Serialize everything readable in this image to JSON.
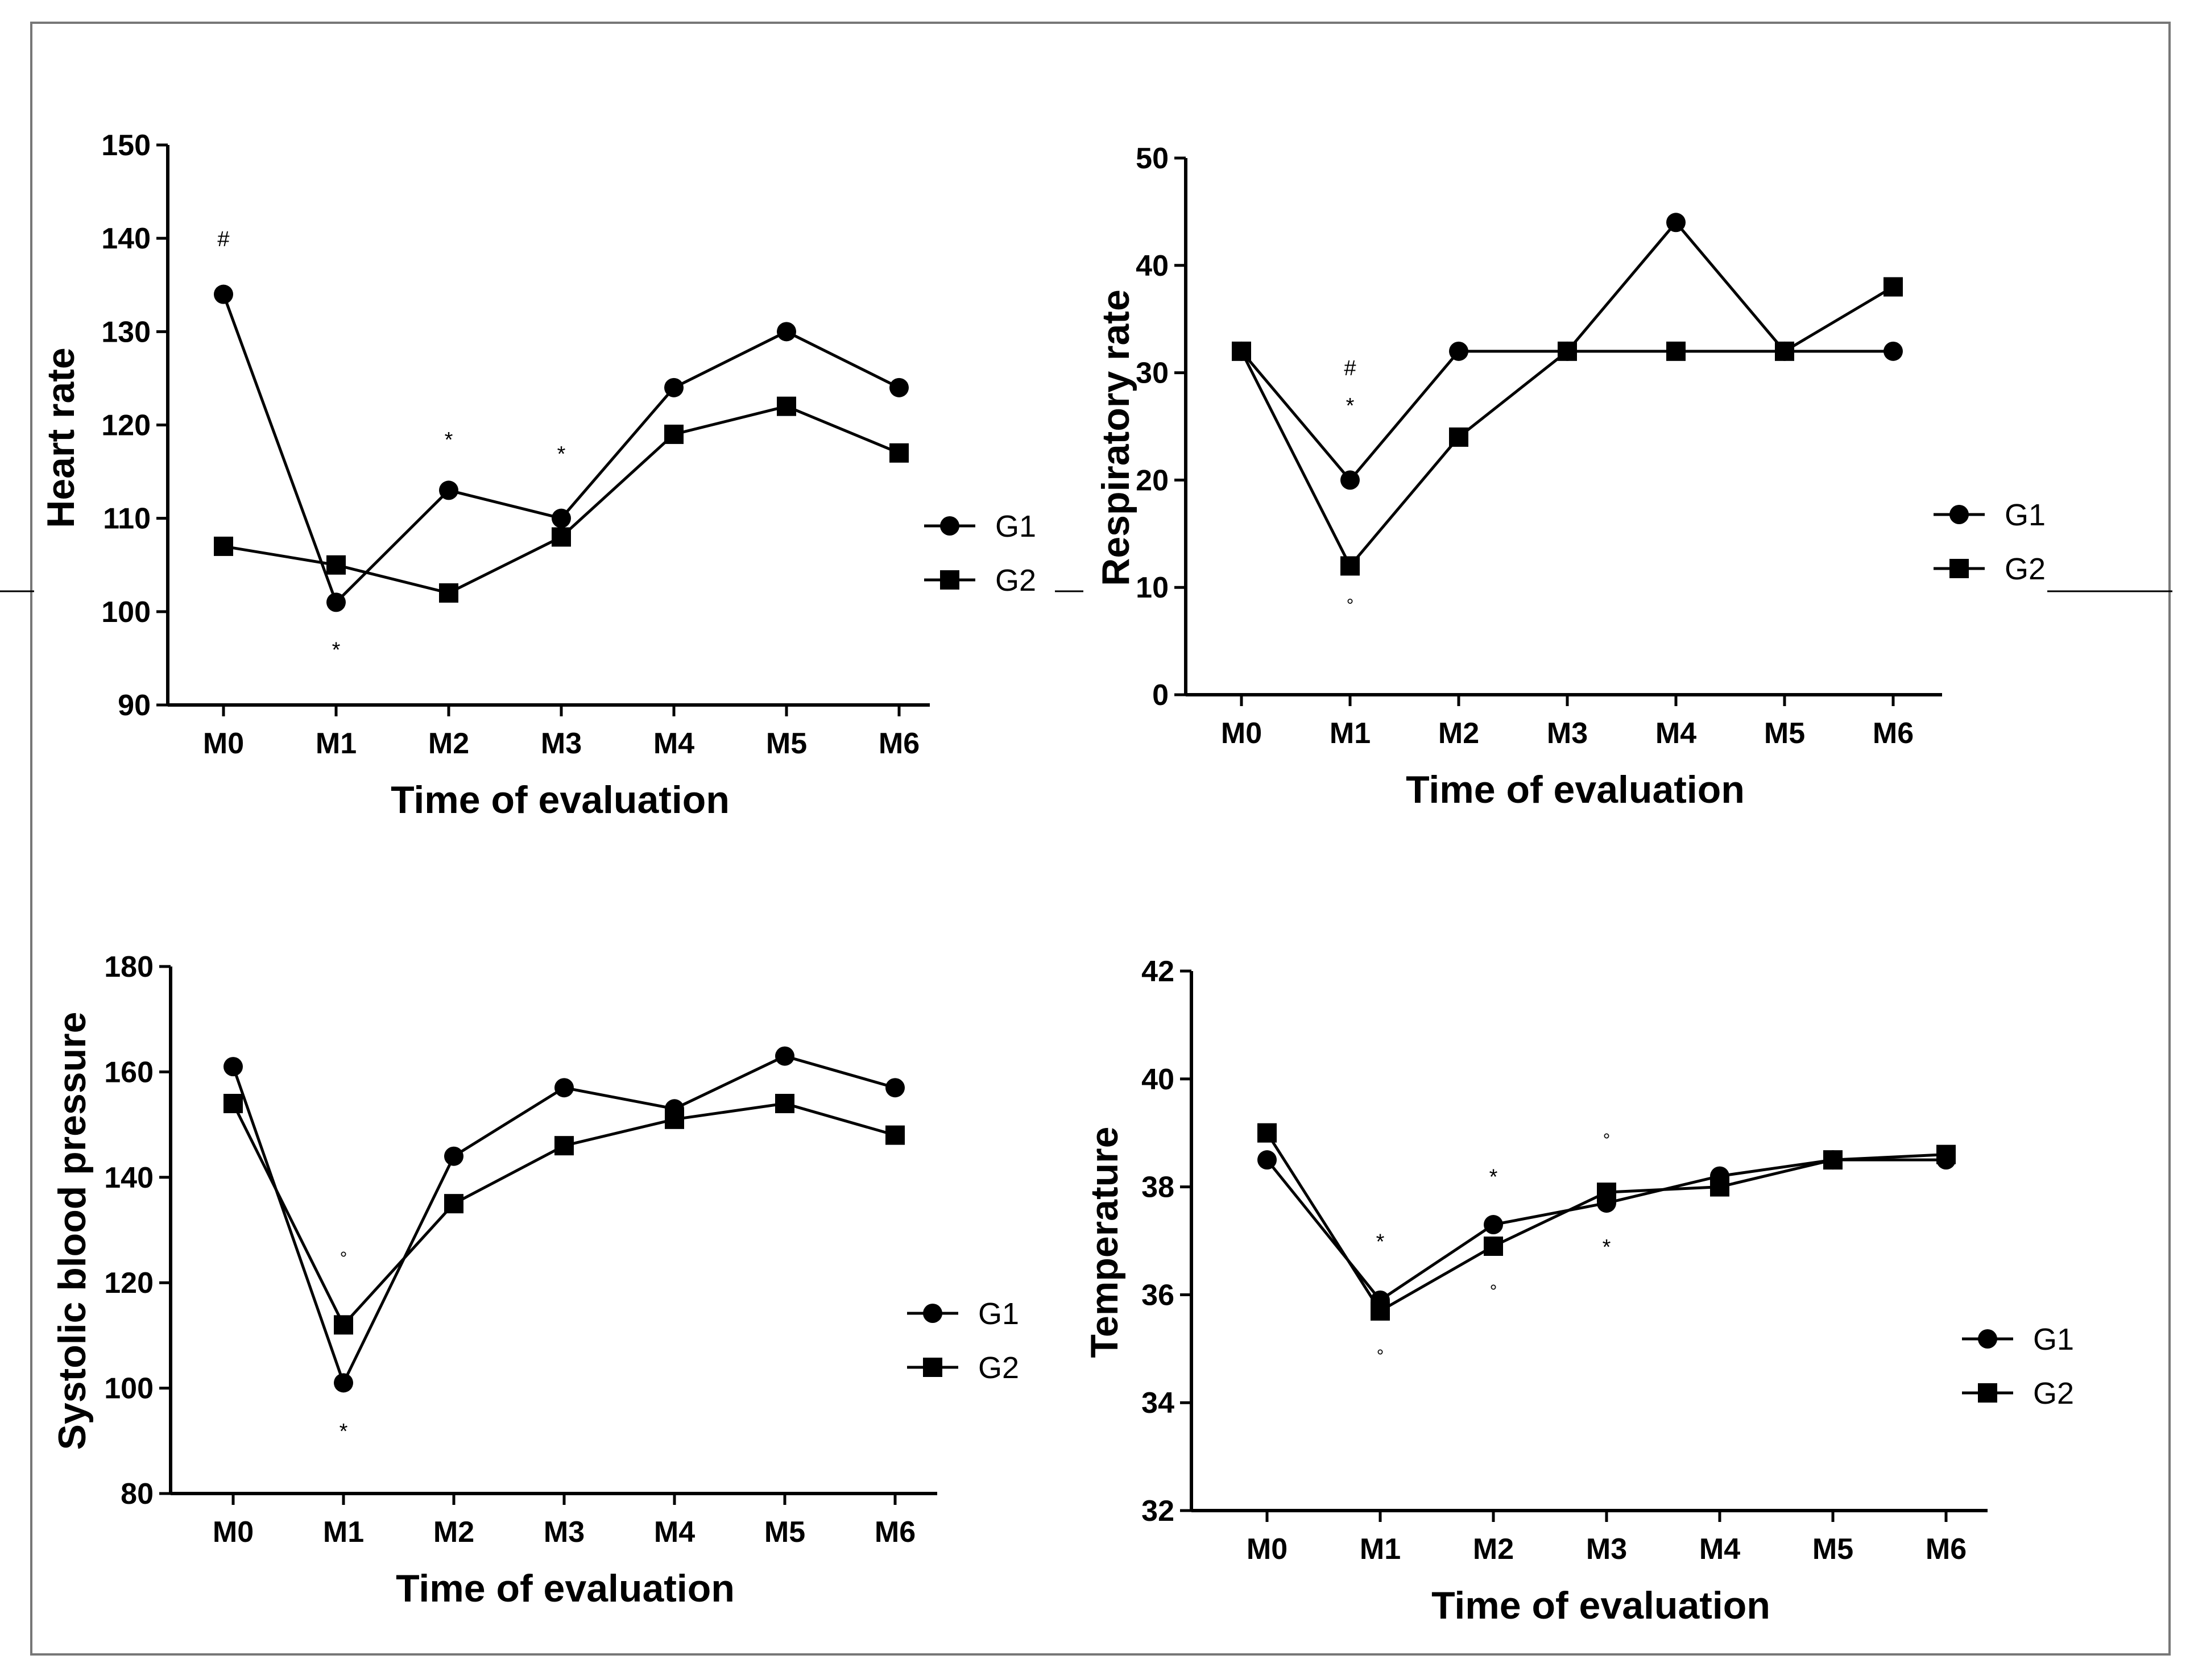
{
  "chart_data": [
    {
      "type": "line",
      "title": "",
      "xlabel": "Time of evaluation",
      "ylabel": "Heart rate",
      "categories": [
        "M0",
        "M1",
        "M2",
        "M3",
        "M4",
        "M5",
        "M6"
      ],
      "ylim": [
        90,
        150
      ],
      "yticks": [
        90,
        100,
        110,
        120,
        130,
        140,
        150
      ],
      "grid": false,
      "legend": "right",
      "series": [
        {
          "name": "G1",
          "marker": "circle",
          "values": [
            134,
            101,
            113,
            110,
            124,
            130,
            124
          ]
        },
        {
          "name": "G2",
          "marker": "square",
          "values": [
            107,
            105,
            102,
            108,
            119,
            122,
            117
          ]
        }
      ],
      "annotations": [
        {
          "text": "#",
          "category": "M0",
          "y": 140
        },
        {
          "text": "*",
          "category": "M1",
          "y": 96
        },
        {
          "text": "*",
          "category": "M2",
          "y": 118.5
        },
        {
          "text": "*",
          "category": "M3",
          "y": 117
        }
      ]
    },
    {
      "type": "line",
      "title": "",
      "xlabel": "Time of evaluation",
      "ylabel": "Respiratory rate",
      "categories": [
        "M0",
        "M1",
        "M2",
        "M3",
        "M4",
        "M5",
        "M6"
      ],
      "ylim": [
        0,
        50
      ],
      "yticks": [
        0,
        10,
        20,
        30,
        40,
        50
      ],
      "grid": false,
      "legend": "right",
      "series": [
        {
          "name": "G1",
          "marker": "circle",
          "values": [
            32,
            20,
            32,
            32,
            44,
            32,
            32
          ]
        },
        {
          "name": "G2",
          "marker": "square",
          "values": [
            32,
            12,
            24,
            32,
            32,
            32,
            38
          ]
        }
      ],
      "annotations": [
        {
          "text": "#",
          "category": "M1",
          "y": 30.5
        },
        {
          "text": "*",
          "category": "M1",
          "y": 27
        },
        {
          "text": "°",
          "category": "M1",
          "y": 8.5
        }
      ]
    },
    {
      "type": "line",
      "title": "",
      "xlabel": "Time of evaluation",
      "ylabel": "Systolic blood pressure",
      "categories": [
        "M0",
        "M1",
        "M2",
        "M3",
        "M4",
        "M5",
        "M6"
      ],
      "ylim": [
        80,
        180
      ],
      "yticks": [
        80,
        100,
        120,
        140,
        160,
        180
      ],
      "grid": false,
      "legend": "right",
      "series": [
        {
          "name": "G1",
          "marker": "circle",
          "values": [
            161,
            101,
            144,
            157,
            153,
            163,
            157
          ]
        },
        {
          "name": "G2",
          "marker": "square",
          "values": [
            154,
            112,
            135,
            146,
            151,
            154,
            148
          ]
        }
      ],
      "annotations": [
        {
          "text": "°",
          "category": "M1",
          "y": 125
        },
        {
          "text": "*",
          "category": "M1",
          "y": 92
        }
      ]
    },
    {
      "type": "line",
      "title": "",
      "xlabel": "Time of evaluation",
      "ylabel": "Temperature",
      "categories": [
        "M0",
        "M1",
        "M2",
        "M3",
        "M4",
        "M5",
        "M6"
      ],
      "ylim": [
        32,
        42
      ],
      "yticks": [
        32,
        34,
        36,
        38,
        40,
        42
      ],
      "grid": false,
      "legend": "right",
      "series": [
        {
          "name": "G1",
          "marker": "circle",
          "values": [
            38.5,
            35.9,
            37.3,
            37.7,
            38.2,
            38.5,
            38.5
          ]
        },
        {
          "name": "G2",
          "marker": "square",
          "values": [
            39.0,
            35.7,
            36.9,
            37.9,
            38.0,
            38.5,
            38.6
          ]
        }
      ],
      "annotations": [
        {
          "text": "°",
          "category": "M1",
          "y": 34.9
        },
        {
          "text": "*",
          "category": "M1",
          "y": 37
        },
        {
          "text": "*",
          "category": "M2",
          "y": 38.2
        },
        {
          "text": "°",
          "category": "M2",
          "y": 36.1
        },
        {
          "text": "°",
          "category": "M3",
          "y": 38.9
        },
        {
          "text": "*",
          "category": "M3",
          "y": 36.9
        }
      ]
    }
  ]
}
